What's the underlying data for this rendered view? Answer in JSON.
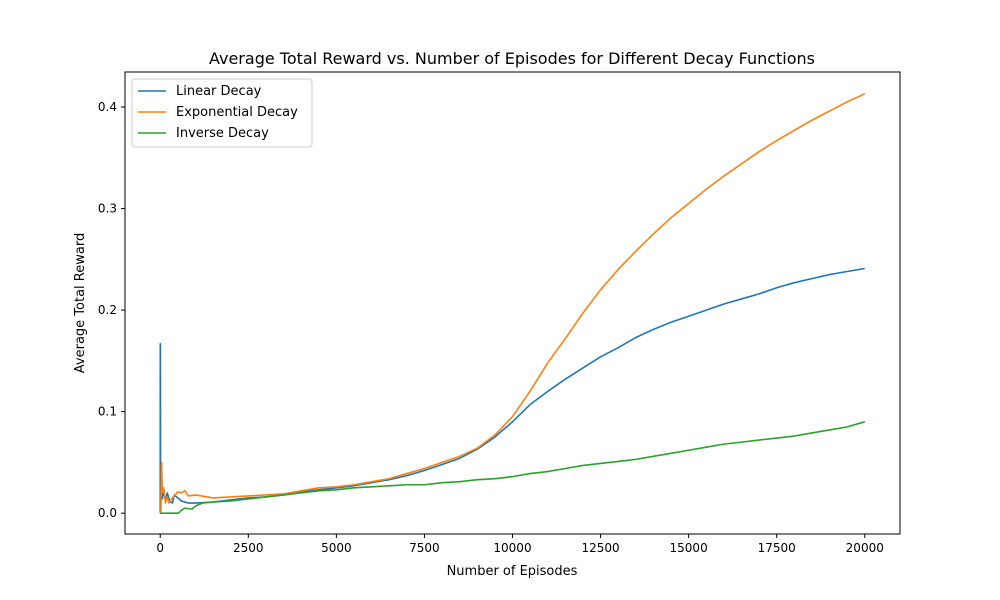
{
  "chart_data": {
    "type": "line",
    "title": "Average Total Reward vs. Number of Episodes for Different Decay Functions",
    "xlabel": "Number of Episodes",
    "ylabel": "Average Total Reward",
    "xlim": [
      -1000,
      21000
    ],
    "ylim": [
      -0.0205,
      0.4345
    ],
    "xticks": [
      0,
      2500,
      5000,
      7500,
      10000,
      12500,
      15000,
      17500,
      20000
    ],
    "xtick_labels": [
      "0",
      "2500",
      "5000",
      "7500",
      "10000",
      "12500",
      "15000",
      "17500",
      "20000"
    ],
    "yticks": [
      0.0,
      0.1,
      0.2,
      0.3,
      0.4
    ],
    "ytick_labels": [
      "0.0",
      "0.1",
      "0.2",
      "0.3",
      "0.4"
    ],
    "grid": false,
    "legend_position": "top-left",
    "series": [
      {
        "name": "Linear Decay",
        "color": "#1f77b4",
        "x": [
          0,
          2,
          6,
          10,
          20,
          40,
          60,
          100,
          150,
          200,
          250,
          300,
          350,
          400,
          500,
          600,
          700,
          800,
          1000,
          1500,
          2000,
          2500,
          3000,
          3500,
          4000,
          4500,
          5000,
          5500,
          6000,
          6500,
          7000,
          7500,
          8000,
          8500,
          9000,
          9500,
          10000,
          10500,
          11000,
          11500,
          12000,
          12500,
          13000,
          13500,
          14000,
          14500,
          15000,
          15500,
          16000,
          16500,
          17000,
          17500,
          18000,
          18500,
          19000,
          19500,
          20000
        ],
        "y": [
          0.0,
          0.167,
          0.166,
          0.0,
          0.05,
          0.024,
          0.014,
          0.022,
          0.012,
          0.02,
          0.014,
          0.011,
          0.01,
          0.018,
          0.015,
          0.012,
          0.011,
          0.01,
          0.01,
          0.011,
          0.013,
          0.015,
          0.016,
          0.018,
          0.021,
          0.023,
          0.025,
          0.027,
          0.03,
          0.033,
          0.037,
          0.042,
          0.048,
          0.054,
          0.063,
          0.075,
          0.09,
          0.107,
          0.12,
          0.132,
          0.143,
          0.154,
          0.163,
          0.173,
          0.181,
          0.188,
          0.194,
          0.2,
          0.206,
          0.211,
          0.216,
          0.222,
          0.227,
          0.231,
          0.235,
          0.238,
          0.241
        ]
      },
      {
        "name": "Exponential Decay",
        "color": "#ff7f0e",
        "x": [
          0,
          20,
          40,
          60,
          100,
          150,
          200,
          250,
          300,
          400,
          500,
          600,
          700,
          800,
          1000,
          1500,
          2000,
          2500,
          3000,
          3500,
          4000,
          4500,
          5000,
          5500,
          6000,
          6500,
          7000,
          7500,
          8000,
          8500,
          9000,
          9500,
          10000,
          10500,
          11000,
          11500,
          12000,
          12500,
          13000,
          13500,
          14000,
          14500,
          15000,
          15500,
          16000,
          16500,
          17000,
          17500,
          18000,
          18500,
          19000,
          19500,
          20000
        ],
        "y": [
          0.0,
          0.002,
          0.05,
          0.02,
          0.025,
          0.01,
          0.016,
          0.01,
          0.013,
          0.017,
          0.021,
          0.02,
          0.022,
          0.017,
          0.018,
          0.015,
          0.016,
          0.017,
          0.018,
          0.019,
          0.022,
          0.025,
          0.026,
          0.028,
          0.031,
          0.034,
          0.039,
          0.044,
          0.05,
          0.056,
          0.064,
          0.077,
          0.095,
          0.12,
          0.148,
          0.172,
          0.197,
          0.22,
          0.24,
          0.258,
          0.275,
          0.291,
          0.305,
          0.319,
          0.332,
          0.344,
          0.356,
          0.367,
          0.377,
          0.387,
          0.396,
          0.405,
          0.413
        ]
      },
      {
        "name": "Inverse Decay",
        "color": "#2ca02c",
        "x": [
          0,
          100,
          200,
          300,
          400,
          500,
          550,
          600,
          700,
          900,
          1000,
          1200,
          1500,
          2000,
          2500,
          3000,
          3500,
          4000,
          4500,
          5000,
          5500,
          6000,
          6500,
          7000,
          7500,
          8000,
          8500,
          9000,
          9500,
          10000,
          10500,
          11000,
          11500,
          12000,
          12500,
          13000,
          13500,
          14000,
          14500,
          15000,
          15500,
          16000,
          16500,
          17000,
          17500,
          18000,
          18500,
          19000,
          19500,
          20000
        ],
        "y": [
          0.0,
          0.0,
          0.0,
          0.0,
          0.0,
          0.0,
          0.001,
          0.003,
          0.005,
          0.004,
          0.007,
          0.01,
          0.011,
          0.012,
          0.014,
          0.016,
          0.018,
          0.02,
          0.022,
          0.023,
          0.025,
          0.026,
          0.027,
          0.028,
          0.028,
          0.03,
          0.031,
          0.033,
          0.034,
          0.036,
          0.039,
          0.041,
          0.044,
          0.047,
          0.049,
          0.051,
          0.053,
          0.056,
          0.059,
          0.062,
          0.065,
          0.068,
          0.07,
          0.072,
          0.074,
          0.076,
          0.079,
          0.082,
          0.085,
          0.09
        ]
      }
    ]
  }
}
